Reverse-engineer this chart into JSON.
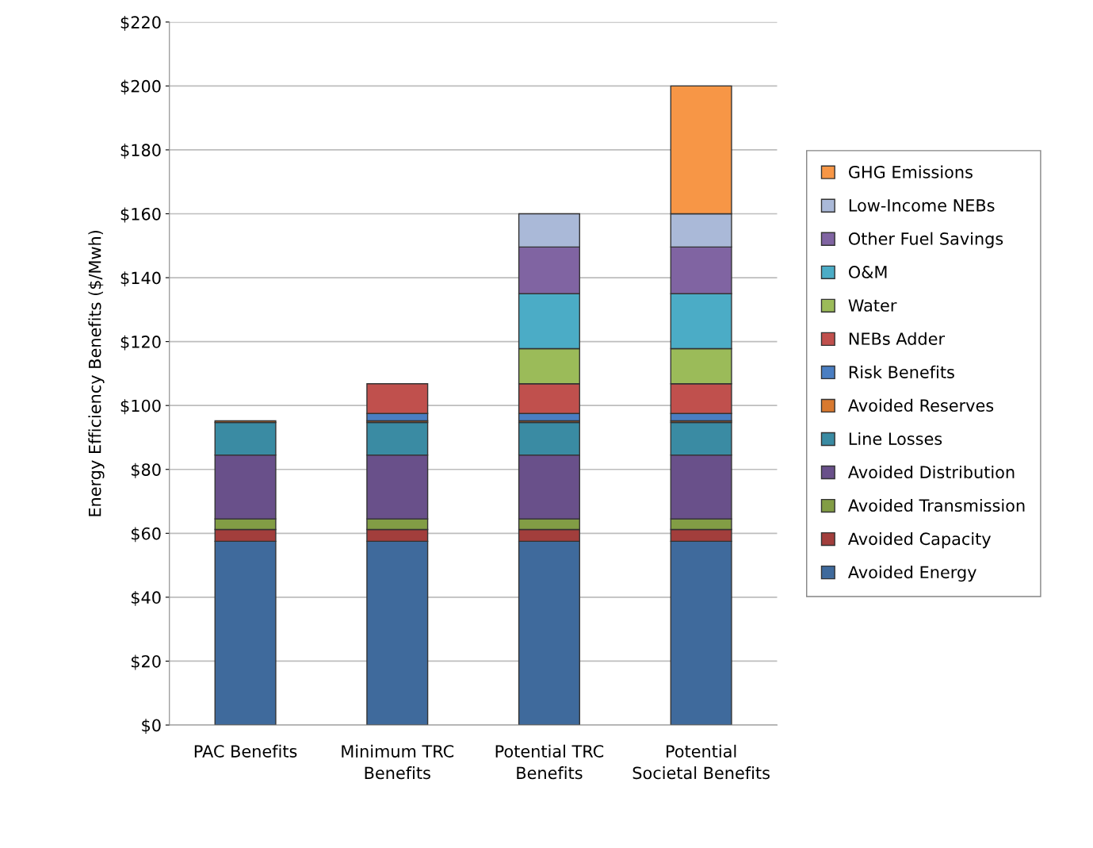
{
  "chart_data": {
    "type": "bar",
    "stacked": true,
    "ylabel": "Energy Efficiency Benefits ($/Mwh)",
    "categories": [
      "PAC Benefits",
      "Minimum TRC Benefits",
      "Potential TRC Benefits",
      "Potential Societal Benefits"
    ],
    "series": [
      {
        "name": "Avoided Energy",
        "color": "#3f6a9c",
        "values": [
          57.5,
          57.5,
          57.5,
          57.5
        ]
      },
      {
        "name": "Avoided Capacity",
        "color": "#a23e3c",
        "values": [
          3.7,
          3.7,
          3.7,
          3.7
        ]
      },
      {
        "name": "Avoided Transmission",
        "color": "#829d45",
        "values": [
          3.3,
          3.3,
          3.3,
          3.3
        ]
      },
      {
        "name": "Avoided Distribution",
        "color": "#69508a",
        "values": [
          20,
          20,
          20,
          20
        ]
      },
      {
        "name": "Line Losses",
        "color": "#3a8ba3",
        "values": [
          10.2,
          10.2,
          10.2,
          10.2
        ]
      },
      {
        "name": "Avoided Reserves",
        "color": "#d8792f",
        "values": [
          0.5,
          0.5,
          0.5,
          0.5
        ]
      },
      {
        "name": "Risk Benefits",
        "color": "#4a7ec2",
        "values": [
          null,
          2.3,
          2.3,
          2.3
        ]
      },
      {
        "name": "NEBs Adder",
        "color": "#c0504d",
        "values": [
          null,
          9.3,
          9.3,
          9.3
        ]
      },
      {
        "name": "Water",
        "color": "#9bbb59",
        "values": [
          null,
          null,
          11,
          11
        ]
      },
      {
        "name": "O&M",
        "color": "#4bacc6",
        "values": [
          null,
          null,
          17.2,
          17.2
        ]
      },
      {
        "name": "Other Fuel Savings",
        "color": "#8064a2",
        "values": [
          null,
          null,
          14.6,
          14.6
        ]
      },
      {
        "name": "Low-Income NEBs",
        "color": "#aab9d8",
        "values": [
          null,
          null,
          10.4,
          10.4
        ]
      },
      {
        "name": "GHG Emissions",
        "color": "#f79646",
        "values": [
          null,
          null,
          null,
          40
        ]
      }
    ],
    "ylim": [
      0,
      220
    ],
    "yticks": [
      {
        "value": 0,
        "label": "$0"
      },
      {
        "value": 20,
        "label": "$20"
      },
      {
        "value": 40,
        "label": "$40"
      },
      {
        "value": 60,
        "label": "$60"
      },
      {
        "value": 80,
        "label": "$80"
      },
      {
        "value": 100,
        "label": "$100"
      },
      {
        "value": 120,
        "label": "$120"
      },
      {
        "value": 140,
        "label": "$140"
      },
      {
        "value": 160,
        "label": "$160"
      },
      {
        "value": 180,
        "label": "$180"
      },
      {
        "value": 200,
        "label": "$200"
      },
      {
        "value": 220,
        "label": "$220"
      }
    ],
    "grid": "y",
    "legend": "right"
  }
}
